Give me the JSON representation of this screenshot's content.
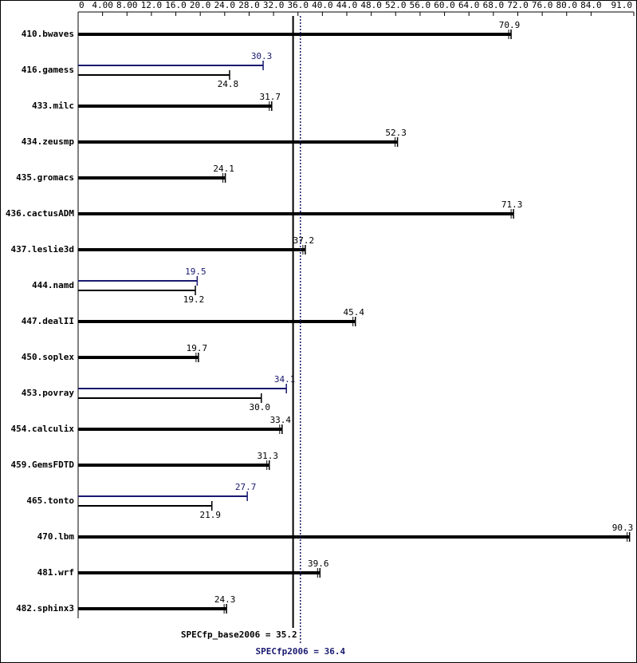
{
  "chart_data": {
    "type": "bar",
    "categories": [
      "410.bwaves",
      "416.gamess",
      "433.milc",
      "434.zeusmp",
      "435.gromacs",
      "436.cactusADM",
      "437.leslie3d",
      "444.namd",
      "447.dealII",
      "450.soplex",
      "453.povray",
      "454.calculix",
      "459.GemsFDTD",
      "465.tonto",
      "470.lbm",
      "481.wrf",
      "482.sphinx3"
    ],
    "series": [
      {
        "color": "#000000",
        "values": [
          70.9,
          24.8,
          31.7,
          52.3,
          24.1,
          71.3,
          37.2,
          19.2,
          45.4,
          19.7,
          30.0,
          33.4,
          31.3,
          21.9,
          90.3,
          39.6,
          24.3
        ],
        "value_labels": [
          "70.9",
          "24.8",
          "31.7",
          "52.3",
          "24.1",
          "71.3",
          "37.2",
          "19.2",
          "45.4",
          "19.7",
          "30.0",
          "33.4",
          "31.3",
          "21.9",
          "90.3",
          "39.6",
          "24.3"
        ]
      },
      {
        "color": "#191970",
        "values": [
          null,
          30.3,
          null,
          null,
          null,
          null,
          null,
          19.5,
          null,
          null,
          34.1,
          null,
          null,
          27.7,
          null,
          null,
          null
        ],
        "value_labels": [
          null,
          "30.3",
          null,
          null,
          null,
          null,
          null,
          "19.5",
          null,
          null,
          "34.1",
          null,
          null,
          "27.7",
          null,
          null,
          null
        ]
      }
    ],
    "xlim": [
      0,
      91
    ],
    "xticks": [
      0,
      {
        "value": 4,
        "label": "4.00"
      },
      {
        "value": 8,
        "label": "8.00"
      },
      {
        "value": 12,
        "label": "12.0"
      },
      {
        "value": 16,
        "label": "16.0"
      },
      {
        "value": 20,
        "label": "20.0"
      },
      {
        "value": 24,
        "label": "24.0"
      },
      {
        "value": 28,
        "label": "28.0"
      },
      {
        "value": 32,
        "label": "32.0"
      },
      {
        "value": 36,
        "label": "36.0"
      },
      {
        "value": 40,
        "label": "40.0"
      },
      {
        "value": 44,
        "label": "44.0"
      },
      {
        "value": 48,
        "label": "48.0"
      },
      {
        "value": 52,
        "label": "52.0"
      },
      {
        "value": 56,
        "label": "56.0"
      },
      {
        "value": 60,
        "label": "60.0"
      },
      {
        "value": 64,
        "label": "64.0"
      },
      {
        "value": 68,
        "label": "68.0"
      },
      {
        "value": 72,
        "label": "72.0"
      },
      {
        "value": 76,
        "label": "76.0"
      },
      {
        "value": 80,
        "label": "80.0"
      },
      {
        "value": 84,
        "label": "84.0"
      },
      {
        "value": 91,
        "label": "91.0"
      }
    ],
    "reference_lines": [
      {
        "value": 35.2,
        "label": "SPECfp_base2006 = 35.2",
        "color": "#000000",
        "style": "solid"
      },
      {
        "value": 36.4,
        "label": "SPECfp2006 = 36.4",
        "color": "#191970",
        "style": "dotted"
      }
    ]
  }
}
